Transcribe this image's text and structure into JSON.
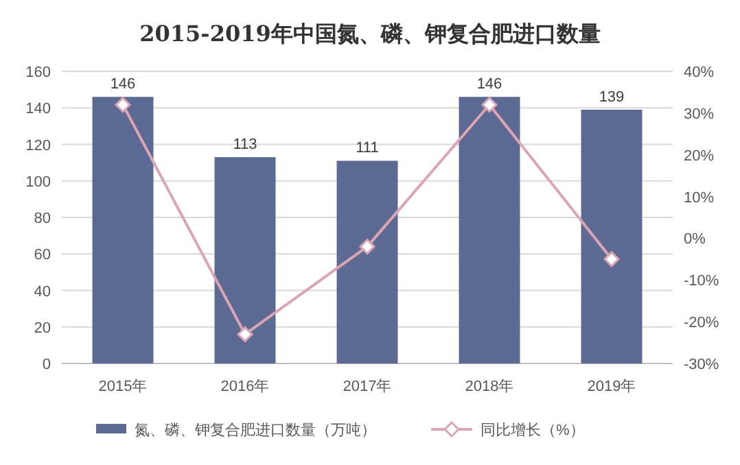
{
  "chart_data": {
    "type": "bar",
    "title": "2015-2019年中国氮、磷、钾复合肥进口数量",
    "categories": [
      "2015年",
      "2016年",
      "2017年",
      "2018年",
      "2019年"
    ],
    "series": [
      {
        "name": "氮、磷、钾复合肥进口数量（万吨）",
        "color": "#5d6a93",
        "values": [
          146,
          113,
          111,
          146,
          139
        ],
        "value_labels": [
          "146",
          "113",
          "111",
          "146",
          "139"
        ]
      },
      {
        "name": "同比增长（%）",
        "type": "line",
        "axis": "y2",
        "color": "#dba5b4",
        "values": [
          32,
          -23,
          -2,
          32,
          -5
        ]
      }
    ],
    "ylim": [
      0,
      160
    ],
    "yticks": [
      0,
      20,
      40,
      60,
      80,
      100,
      120,
      140,
      160
    ],
    "y2lim": [
      -30,
      40
    ],
    "y2ticks": [
      {
        "value": -30,
        "label": "-30%"
      },
      {
        "value": -20,
        "label": "-20%"
      },
      {
        "value": -10,
        "label": "-10%"
      },
      {
        "value": 0,
        "label": "0%"
      },
      {
        "value": 10,
        "label": "10%"
      },
      {
        "value": 20,
        "label": "20%"
      },
      {
        "value": 30,
        "label": "30%"
      },
      {
        "value": 40,
        "label": "40%"
      }
    ],
    "grid": "y",
    "legend": "bottom",
    "marker": "diamond"
  }
}
